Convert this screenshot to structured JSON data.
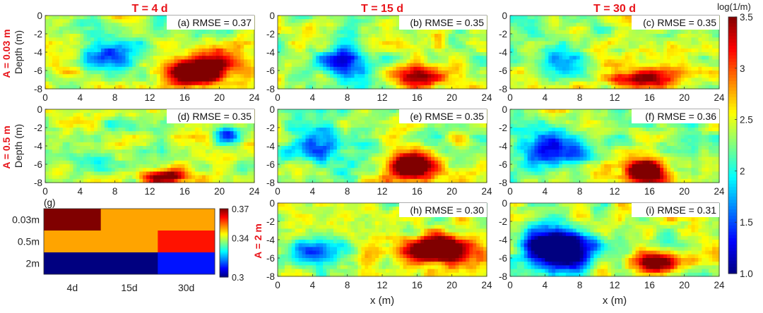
{
  "figure": {
    "col_titles": [
      "T = 4 d",
      "T = 15 d",
      "T = 30 d"
    ],
    "row_titles": [
      "A = 0.03 m",
      "A = 0.5 m",
      "A = 2 m"
    ],
    "colorbar": {
      "title": "log(1/m)",
      "ticks": [
        "3.5",
        "3",
        "2.5",
        "2",
        "1.5",
        "1.0"
      ]
    }
  },
  "chart_data": [
    {
      "type": "heatmap",
      "panels": [
        {
          "label": "(a) RMSE = 0.37",
          "row": "A = 0.03 m",
          "col": "T = 4 d",
          "rmse": 0.37
        },
        {
          "label": "(b) RMSE = 0.35",
          "row": "A = 0.03 m",
          "col": "T = 15 d",
          "rmse": 0.35
        },
        {
          "label": "(c) RMSE = 0.35",
          "row": "A = 0.03 m",
          "col": "T = 30 d",
          "rmse": 0.35
        },
        {
          "label": "(d) RMSE = 0.35",
          "row": "A = 0.5 m",
          "col": "T = 4 d",
          "rmse": 0.35
        },
        {
          "label": "(e) RMSE = 0.35",
          "row": "A = 0.5 m",
          "col": "T = 15 d",
          "rmse": 0.35
        },
        {
          "label": "(f) RMSE = 0.36",
          "row": "A = 0.5 m",
          "col": "T = 30 d",
          "rmse": 0.36
        },
        {
          "label": "(h) RMSE = 0.30",
          "row": "A = 2 m",
          "col": "T = 15 d",
          "rmse": 0.3
        },
        {
          "label": "(i) RMSE = 0.31",
          "row": "A = 2 m",
          "col": "T = 30 d",
          "rmse": 0.31
        }
      ],
      "xlabel": "x (m)",
      "ylabel": "Depth (m)",
      "xlim": [
        0,
        24
      ],
      "ylim": [
        -8,
        0
      ],
      "xticks": [
        "0",
        "4",
        "8",
        "12",
        "16",
        "20",
        "24"
      ],
      "yticks": [
        "0",
        "-2",
        "-4",
        "-6",
        "-8"
      ],
      "colorbar_range": [
        1.0,
        3.5
      ]
    },
    {
      "type": "heatmap",
      "label": "(g)",
      "rows": [
        "0.03m",
        "0.5m",
        "2m"
      ],
      "cols": [
        "4d",
        "15d",
        "30d"
      ],
      "values": [
        [
          0.37,
          0.35,
          0.35
        ],
        [
          0.35,
          0.35,
          0.36
        ],
        [
          0.3,
          0.3,
          0.31
        ]
      ],
      "colorbar_ticks": [
        "0.37",
        "0.34",
        "0.3"
      ],
      "colorbar_range": [
        0.3,
        0.37
      ]
    }
  ]
}
